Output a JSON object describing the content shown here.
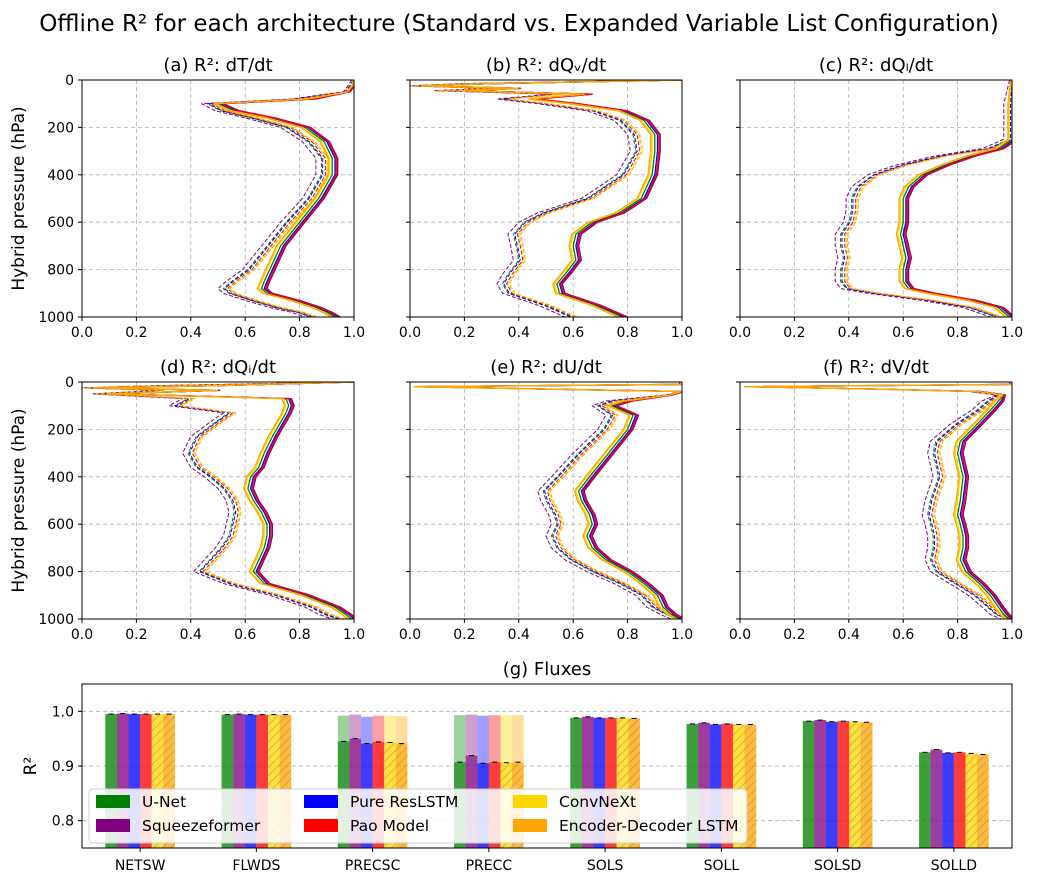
{
  "figure": {
    "title": "Offline R² for each architecture (Standard vs. Expanded Variable List Configuration)"
  },
  "colors": {
    "U-Net": "#008000",
    "Squeezeformer": "#800080",
    "Pure ResLSTM": "#0000ff",
    "Pao Model": "#ff0000",
    "ConvNeXt": "#ffd700",
    "Encoder-Decoder LSTM": "#ffa500"
  },
  "legend": {
    "entries": [
      "U-Net",
      "Squeezeformer",
      "Pure ResLSTM",
      "Pao Model",
      "ConvNeXt",
      "Encoder-Decoder LSTM"
    ]
  },
  "chart_data": [
    {
      "type": "line",
      "panel": "a",
      "title": "(a) R²: dT/dt",
      "xlabel": "",
      "ylabel": "Hybrid pressure (hPa)",
      "xlim": [
        0.0,
        1.0
      ],
      "ylim": [
        1000,
        0
      ],
      "y_inverted": true,
      "xticks": [
        "0.0",
        "0.2",
        "0.4",
        "0.6",
        "0.8",
        "1.0"
      ],
      "yticks": [
        "0",
        "200",
        "400",
        "600",
        "800",
        "1000"
      ],
      "pressure": [
        0,
        20,
        50,
        80,
        100,
        130,
        160,
        200,
        260,
        330,
        400,
        500,
        600,
        700,
        800,
        850,
        880,
        900,
        930,
        960,
        980,
        1000
      ],
      "standard_profile": [
        1.0,
        0.99,
        0.97,
        0.8,
        0.47,
        0.52,
        0.63,
        0.76,
        0.84,
        0.89,
        0.89,
        0.84,
        0.76,
        0.69,
        0.62,
        0.56,
        0.53,
        0.55,
        0.63,
        0.72,
        0.8,
        0.85
      ],
      "expanded_profile": [
        1.0,
        1.0,
        0.98,
        0.84,
        0.5,
        0.56,
        0.69,
        0.82,
        0.89,
        0.92,
        0.92,
        0.87,
        0.8,
        0.73,
        0.69,
        0.67,
        0.66,
        0.68,
        0.78,
        0.86,
        0.9,
        0.93
      ],
      "series": [
        {
          "name": "U-Net",
          "offset_standard": -0.01,
          "offset_expanded": 0.0
        },
        {
          "name": "Squeezeformer",
          "offset_standard": -0.03,
          "offset_expanded": 0.02
        },
        {
          "name": "Pure ResLSTM",
          "offset_standard": -0.005,
          "offset_expanded": 0.01
        },
        {
          "name": "Pao Model",
          "offset_standard": 0.005,
          "offset_expanded": 0.015
        },
        {
          "name": "ConvNeXt",
          "offset_standard": 0.01,
          "offset_expanded": -0.01
        },
        {
          "name": "Encoder-Decoder LSTM",
          "offset_standard": 0.015,
          "offset_expanded": -0.015
        }
      ]
    },
    {
      "type": "line",
      "panel": "b",
      "title": "(b) R²: dQᵥ/dt",
      "xlabel": "",
      "ylabel": "",
      "xlim": [
        0.0,
        1.0
      ],
      "ylim": [
        1000,
        0
      ],
      "y_inverted": true,
      "xticks": [
        "0.0",
        "0.2",
        "0.4",
        "0.6",
        "0.8",
        "1.0"
      ],
      "yticks": [
        "",
        "",
        "",
        "",
        "",
        ""
      ],
      "pressure": [
        0,
        15,
        25,
        35,
        45,
        60,
        80,
        100,
        130,
        170,
        230,
        300,
        400,
        500,
        560,
        600,
        650,
        700,
        760,
        820,
        860,
        900,
        950,
        1000
      ],
      "standard_profile": [
        1.0,
        0.2,
        0.0,
        0.3,
        0.1,
        0.55,
        0.35,
        0.5,
        0.68,
        0.78,
        0.83,
        0.84,
        0.79,
        0.66,
        0.5,
        0.43,
        0.39,
        0.4,
        0.41,
        0.37,
        0.35,
        0.37,
        0.5,
        0.6
      ],
      "expanded_profile": [
        1.0,
        0.3,
        0.05,
        0.4,
        0.2,
        0.65,
        0.45,
        0.6,
        0.78,
        0.86,
        0.9,
        0.9,
        0.89,
        0.85,
        0.77,
        0.67,
        0.61,
        0.6,
        0.61,
        0.57,
        0.54,
        0.55,
        0.68,
        0.78
      ],
      "series": [
        {
          "name": "U-Net",
          "offset_standard": -0.01,
          "offset_expanded": 0.0
        },
        {
          "name": "Squeezeformer",
          "offset_standard": -0.03,
          "offset_expanded": 0.02
        },
        {
          "name": "Pure ResLSTM",
          "offset_standard": -0.005,
          "offset_expanded": 0.01
        },
        {
          "name": "Pao Model",
          "offset_standard": 0.005,
          "offset_expanded": 0.015
        },
        {
          "name": "ConvNeXt",
          "offset_standard": 0.01,
          "offset_expanded": -0.01
        },
        {
          "name": "Encoder-Decoder LSTM",
          "offset_standard": 0.015,
          "offset_expanded": -0.015
        }
      ]
    },
    {
      "type": "line",
      "panel": "c",
      "title": "(c) R²: dQₗ/dt",
      "xlabel": "",
      "ylabel": "",
      "xlim": [
        0.0,
        1.0
      ],
      "ylim": [
        1000,
        0
      ],
      "y_inverted": true,
      "xticks": [
        "0.0",
        "0.2",
        "0.4",
        "0.6",
        "0.8",
        "1.0"
      ],
      "yticks": [
        "",
        "",
        "",
        "",
        "",
        ""
      ],
      "pressure": [
        0,
        100,
        250,
        290,
        320,
        360,
        400,
        450,
        500,
        550,
        600,
        650,
        700,
        750,
        800,
        850,
        880,
        900,
        930,
        960,
        1000
      ],
      "standard_profile": [
        1.0,
        1.0,
        1.0,
        0.92,
        0.75,
        0.6,
        0.5,
        0.44,
        0.42,
        0.42,
        0.41,
        0.38,
        0.38,
        0.39,
        0.38,
        0.38,
        0.4,
        0.5,
        0.7,
        0.85,
        0.95
      ],
      "expanded_profile": [
        1.0,
        1.0,
        1.0,
        0.95,
        0.85,
        0.75,
        0.67,
        0.62,
        0.6,
        0.6,
        0.6,
        0.59,
        0.6,
        0.61,
        0.6,
        0.6,
        0.62,
        0.7,
        0.85,
        0.95,
        0.99
      ],
      "series": [
        {
          "name": "U-Net",
          "offset_standard": -0.01,
          "offset_expanded": 0.0
        },
        {
          "name": "Squeezeformer",
          "offset_standard": -0.03,
          "offset_expanded": 0.02
        },
        {
          "name": "Pure ResLSTM",
          "offset_standard": -0.005,
          "offset_expanded": 0.01
        },
        {
          "name": "Pao Model",
          "offset_standard": 0.005,
          "offset_expanded": 0.015
        },
        {
          "name": "ConvNeXt",
          "offset_standard": 0.01,
          "offset_expanded": -0.01
        },
        {
          "name": "Encoder-Decoder LSTM",
          "offset_standard": 0.015,
          "offset_expanded": -0.015
        }
      ]
    },
    {
      "type": "line",
      "panel": "d",
      "title": "(d) R²: dQᵢ/dt",
      "xlabel": "",
      "ylabel": "Hybrid pressure (hPa)",
      "xlim": [
        0.0,
        1.0
      ],
      "ylim": [
        1000,
        0
      ],
      "y_inverted": true,
      "xticks": [
        "0.0",
        "0.2",
        "0.4",
        "0.6",
        "0.8",
        "1.0"
      ],
      "yticks": [
        "0",
        "200",
        "400",
        "600",
        "800",
        "1000"
      ],
      "pressure": [
        0,
        15,
        25,
        35,
        50,
        70,
        100,
        130,
        170,
        230,
        300,
        360,
        400,
        450,
        500,
        550,
        600,
        650,
        700,
        750,
        800,
        850,
        900,
        950,
        980,
        1000
      ],
      "standard_profile": [
        1.0,
        0.3,
        0.0,
        0.3,
        0.05,
        0.4,
        0.35,
        0.55,
        0.5,
        0.43,
        0.4,
        0.43,
        0.48,
        0.53,
        0.56,
        0.57,
        0.56,
        0.55,
        0.52,
        0.48,
        0.44,
        0.55,
        0.72,
        0.85,
        0.9,
        0.95
      ],
      "expanded_profile": [
        1.0,
        0.5,
        0.05,
        0.5,
        0.1,
        0.75,
        0.76,
        0.75,
        0.73,
        0.7,
        0.67,
        0.65,
        0.62,
        0.61,
        0.63,
        0.66,
        0.68,
        0.68,
        0.67,
        0.65,
        0.63,
        0.67,
        0.82,
        0.93,
        0.97,
        0.99
      ],
      "series": [
        {
          "name": "U-Net",
          "offset_standard": -0.01,
          "offset_expanded": 0.0
        },
        {
          "name": "Squeezeformer",
          "offset_standard": -0.03,
          "offset_expanded": 0.02
        },
        {
          "name": "Pure ResLSTM",
          "offset_standard": -0.005,
          "offset_expanded": 0.01
        },
        {
          "name": "Pao Model",
          "offset_standard": 0.005,
          "offset_expanded": 0.015
        },
        {
          "name": "ConvNeXt",
          "offset_standard": 0.01,
          "offset_expanded": -0.01
        },
        {
          "name": "Encoder-Decoder LSTM",
          "offset_standard": 0.015,
          "offset_expanded": -0.015
        }
      ]
    },
    {
      "type": "line",
      "panel": "e",
      "title": "(e) R²: dU/dt",
      "xlabel": "",
      "ylabel": "",
      "xlim": [
        0.0,
        1.0
      ],
      "ylim": [
        1000,
        0
      ],
      "y_inverted": true,
      "xticks": [
        "0.0",
        "0.2",
        "0.4",
        "0.6",
        "0.8",
        "1.0"
      ],
      "yticks": [
        "",
        "",
        "",
        "",
        "",
        ""
      ],
      "pressure": [
        0,
        10,
        20,
        30,
        40,
        55,
        80,
        100,
        140,
        200,
        300,
        400,
        460,
        500,
        560,
        600,
        650,
        700,
        750,
        800,
        850,
        900,
        950,
        980,
        1000
      ],
      "standard_profile": [
        1.0,
        1.0,
        0.02,
        0.5,
        1.0,
        0.95,
        0.75,
        0.7,
        0.75,
        0.72,
        0.63,
        0.55,
        0.5,
        0.51,
        0.54,
        0.55,
        0.53,
        0.55,
        0.6,
        0.68,
        0.78,
        0.86,
        0.9,
        0.95,
        0.99
      ],
      "expanded_profile": [
        1.0,
        1.0,
        0.02,
        0.5,
        1.0,
        0.96,
        0.8,
        0.74,
        0.82,
        0.8,
        0.73,
        0.66,
        0.62,
        0.63,
        0.66,
        0.67,
        0.65,
        0.67,
        0.72,
        0.8,
        0.86,
        0.91,
        0.93,
        0.96,
        0.99
      ],
      "series": [
        {
          "name": "U-Net",
          "offset_standard": -0.01,
          "offset_expanded": 0.0
        },
        {
          "name": "Squeezeformer",
          "offset_standard": -0.03,
          "offset_expanded": 0.02
        },
        {
          "name": "Pure ResLSTM",
          "offset_standard": -0.005,
          "offset_expanded": 0.01
        },
        {
          "name": "Pao Model",
          "offset_standard": 0.005,
          "offset_expanded": 0.015
        },
        {
          "name": "ConvNeXt",
          "offset_standard": 0.01,
          "offset_expanded": -0.01
        },
        {
          "name": "Encoder-Decoder LSTM",
          "offset_standard": 0.015,
          "offset_expanded": -0.015
        }
      ]
    },
    {
      "type": "line",
      "panel": "f",
      "title": "(f) R²: dV/dt",
      "xlabel": "",
      "ylabel": "",
      "xlim": [
        0.0,
        1.0
      ],
      "ylim": [
        1000,
        0
      ],
      "y_inverted": true,
      "xticks": [
        "0.0",
        "0.2",
        "0.4",
        "0.6",
        "0.8",
        "1.0"
      ],
      "yticks": [
        "",
        "",
        "",
        "",
        "",
        ""
      ],
      "pressure": [
        0,
        10,
        20,
        30,
        40,
        55,
        80,
        120,
        180,
        250,
        300,
        400,
        500,
        560,
        600,
        650,
        700,
        750,
        800,
        850,
        900,
        950,
        980,
        1000
      ],
      "standard_profile": [
        1.0,
        1.0,
        0.02,
        0.5,
        0.85,
        0.95,
        0.92,
        0.88,
        0.8,
        0.73,
        0.72,
        0.74,
        0.71,
        0.7,
        0.71,
        0.72,
        0.72,
        0.71,
        0.73,
        0.8,
        0.87,
        0.92,
        0.95,
        0.99
      ],
      "expanded_profile": [
        1.0,
        1.0,
        0.02,
        0.5,
        0.88,
        0.97,
        0.95,
        0.92,
        0.87,
        0.81,
        0.8,
        0.82,
        0.81,
        0.8,
        0.81,
        0.82,
        0.82,
        0.81,
        0.83,
        0.88,
        0.92,
        0.95,
        0.97,
        0.99
      ],
      "series": [
        {
          "name": "U-Net",
          "offset_standard": -0.01,
          "offset_expanded": 0.0
        },
        {
          "name": "Squeezeformer",
          "offset_standard": -0.03,
          "offset_expanded": 0.02
        },
        {
          "name": "Pure ResLSTM",
          "offset_standard": -0.005,
          "offset_expanded": 0.01
        },
        {
          "name": "Pao Model",
          "offset_standard": 0.005,
          "offset_expanded": 0.015
        },
        {
          "name": "ConvNeXt",
          "offset_standard": 0.01,
          "offset_expanded": -0.01
        },
        {
          "name": "Encoder-Decoder LSTM",
          "offset_standard": 0.015,
          "offset_expanded": -0.015
        }
      ]
    },
    {
      "type": "bar",
      "panel": "g",
      "title": "(g) Fluxes",
      "xlabel": "",
      "ylabel": "R²",
      "ylim": [
        0.75,
        1.05
      ],
      "yticks": [
        "0.8",
        "0.9",
        "1.0"
      ],
      "categories": [
        "NETSW",
        "FLWDS",
        "PRECSC",
        "PRECC",
        "SOLS",
        "SOLL",
        "SOLSD",
        "SOLLD"
      ],
      "legend_position": "lower left",
      "grid": true,
      "series": [
        {
          "name": "U-Net",
          "standard": [
            0.995,
            0.994,
            0.945,
            0.907,
            0.988,
            0.977,
            0.982,
            0.925
          ],
          "expanded": [
            0.995,
            0.994,
            0.992,
            0.993,
            0.988,
            0.977,
            0.982,
            0.925
          ]
        },
        {
          "name": "Squeezeformer",
          "standard": [
            0.996,
            0.995,
            0.95,
            0.919,
            0.99,
            0.979,
            0.984,
            0.93
          ],
          "expanded": [
            0.996,
            0.995,
            0.994,
            0.994,
            0.99,
            0.979,
            0.984,
            0.93
          ]
        },
        {
          "name": "Pure ResLSTM",
          "standard": [
            0.995,
            0.994,
            0.941,
            0.905,
            0.988,
            0.976,
            0.981,
            0.924
          ],
          "expanded": [
            0.995,
            0.994,
            0.99,
            0.992,
            0.988,
            0.976,
            0.981,
            0.924
          ]
        },
        {
          "name": "Pao Model",
          "standard": [
            0.995,
            0.994,
            0.944,
            0.907,
            0.988,
            0.977,
            0.982,
            0.925
          ],
          "expanded": [
            0.995,
            0.994,
            0.992,
            0.993,
            0.988,
            0.977,
            0.982,
            0.925
          ]
        },
        {
          "name": "ConvNeXt",
          "standard": [
            0.995,
            0.994,
            0.943,
            0.906,
            0.988,
            0.976,
            0.981,
            0.923
          ],
          "expanded": [
            0.995,
            0.994,
            0.992,
            0.993,
            0.988,
            0.976,
            0.981,
            0.923
          ]
        },
        {
          "name": "Encoder-Decoder LSTM",
          "standard": [
            0.995,
            0.994,
            0.941,
            0.907,
            0.987,
            0.976,
            0.98,
            0.921
          ],
          "expanded": [
            0.995,
            0.994,
            0.991,
            0.993,
            0.987,
            0.976,
            0.98,
            0.921
          ]
        }
      ]
    }
  ]
}
